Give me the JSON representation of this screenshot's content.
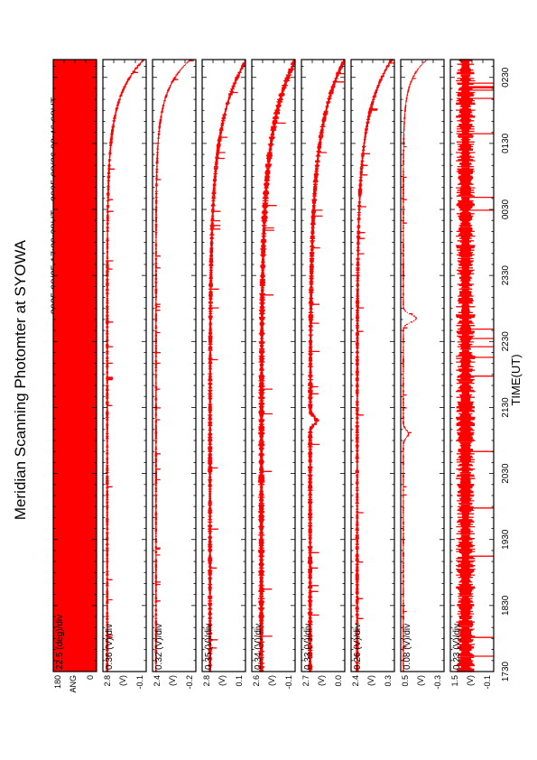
{
  "page": {
    "title": "Meridian Scanning Photomter at SYOWA",
    "subtitle": "2025 08/25 17:30:28UT - 2025 08/26 02:46:08UT",
    "colors": {
      "trace": "#ff0000",
      "axes": "#000000",
      "background": "#ffffff"
    }
  },
  "chart_data": {
    "type": "line",
    "orientation": "rotated-90-ccw",
    "xlabel": "TIME(UT)",
    "x_ticks": [
      "1730",
      "1830",
      "1930",
      "2030",
      "2130",
      "2230",
      "2330",
      "0030",
      "0130",
      "0230"
    ],
    "time_range_hours": [
      17.5,
      26.77
    ],
    "series": [
      {
        "name": "ANG",
        "unit_label": "ANG",
        "top_label": "180",
        "bottom_label": "0",
        "scale": "22.5 (deg)/div",
        "fill": "solid"
      },
      {
        "name": "",
        "unit_label": "(V)",
        "top_label": "2.8",
        "bottom_label": "-0.1",
        "scale": "0.36 (V)/div",
        "baseline": 0.1,
        "noise": 0.05,
        "start_peak": 0.85,
        "decay": 0.55,
        "bumps": []
      },
      {
        "name": "",
        "unit_label": "(V)",
        "top_label": "2.4",
        "bottom_label": "-0.2",
        "scale": "0.32 (V)/div",
        "baseline": 0.08,
        "noise": 0.04,
        "start_peak": 0.8,
        "decay": 0.45,
        "bumps": []
      },
      {
        "name": "",
        "unit_label": "(V)",
        "top_label": "2.8",
        "bottom_label": "0.1",
        "scale": "0.35 (V)/div",
        "baseline": 0.18,
        "noise": 0.07,
        "start_peak": 0.85,
        "decay": 0.9,
        "bumps": []
      },
      {
        "name": "",
        "unit_label": "(V)",
        "top_label": "2.6",
        "bottom_label": "-0.1",
        "scale": "0.34 (V)/div",
        "baseline": 0.22,
        "noise": 0.1,
        "start_peak": 0.8,
        "decay": 1.0,
        "bumps": []
      },
      {
        "name": "",
        "unit_label": "(V)",
        "top_label": "2.7",
        "bottom_label": "0.0",
        "scale": "0.33 (V)/div",
        "baseline": 0.2,
        "noise": 0.08,
        "start_peak": 0.8,
        "decay": 1.0,
        "bumps": [
          [
            21.3,
            0.15
          ]
        ]
      },
      {
        "name": "",
        "unit_label": "(V)",
        "top_label": "2.4",
        "bottom_label": "0.3",
        "scale": "0.26 (V)/div",
        "baseline": 0.14,
        "noise": 0.06,
        "start_peak": 0.8,
        "decay": 0.8,
        "bumps": []
      },
      {
        "name": "",
        "unit_label": "(V)",
        "top_label": "0.5",
        "bottom_label": "-0.3",
        "scale": "0.08 (V)/div",
        "baseline": 0.06,
        "noise": 0.03,
        "start_peak": 0.55,
        "decay": 0.3,
        "bumps": [
          [
            21.1,
            0.12
          ],
          [
            22.85,
            0.3
          ]
        ]
      },
      {
        "name": "",
        "unit_label": "(V)",
        "top_label": "1.5",
        "bottom_label": "-0.1",
        "scale": "0.23 (V)/div",
        "baseline": 0.35,
        "noise": 0.3,
        "start_peak": 0.0,
        "decay": 1.0,
        "bumps": []
      }
    ]
  }
}
